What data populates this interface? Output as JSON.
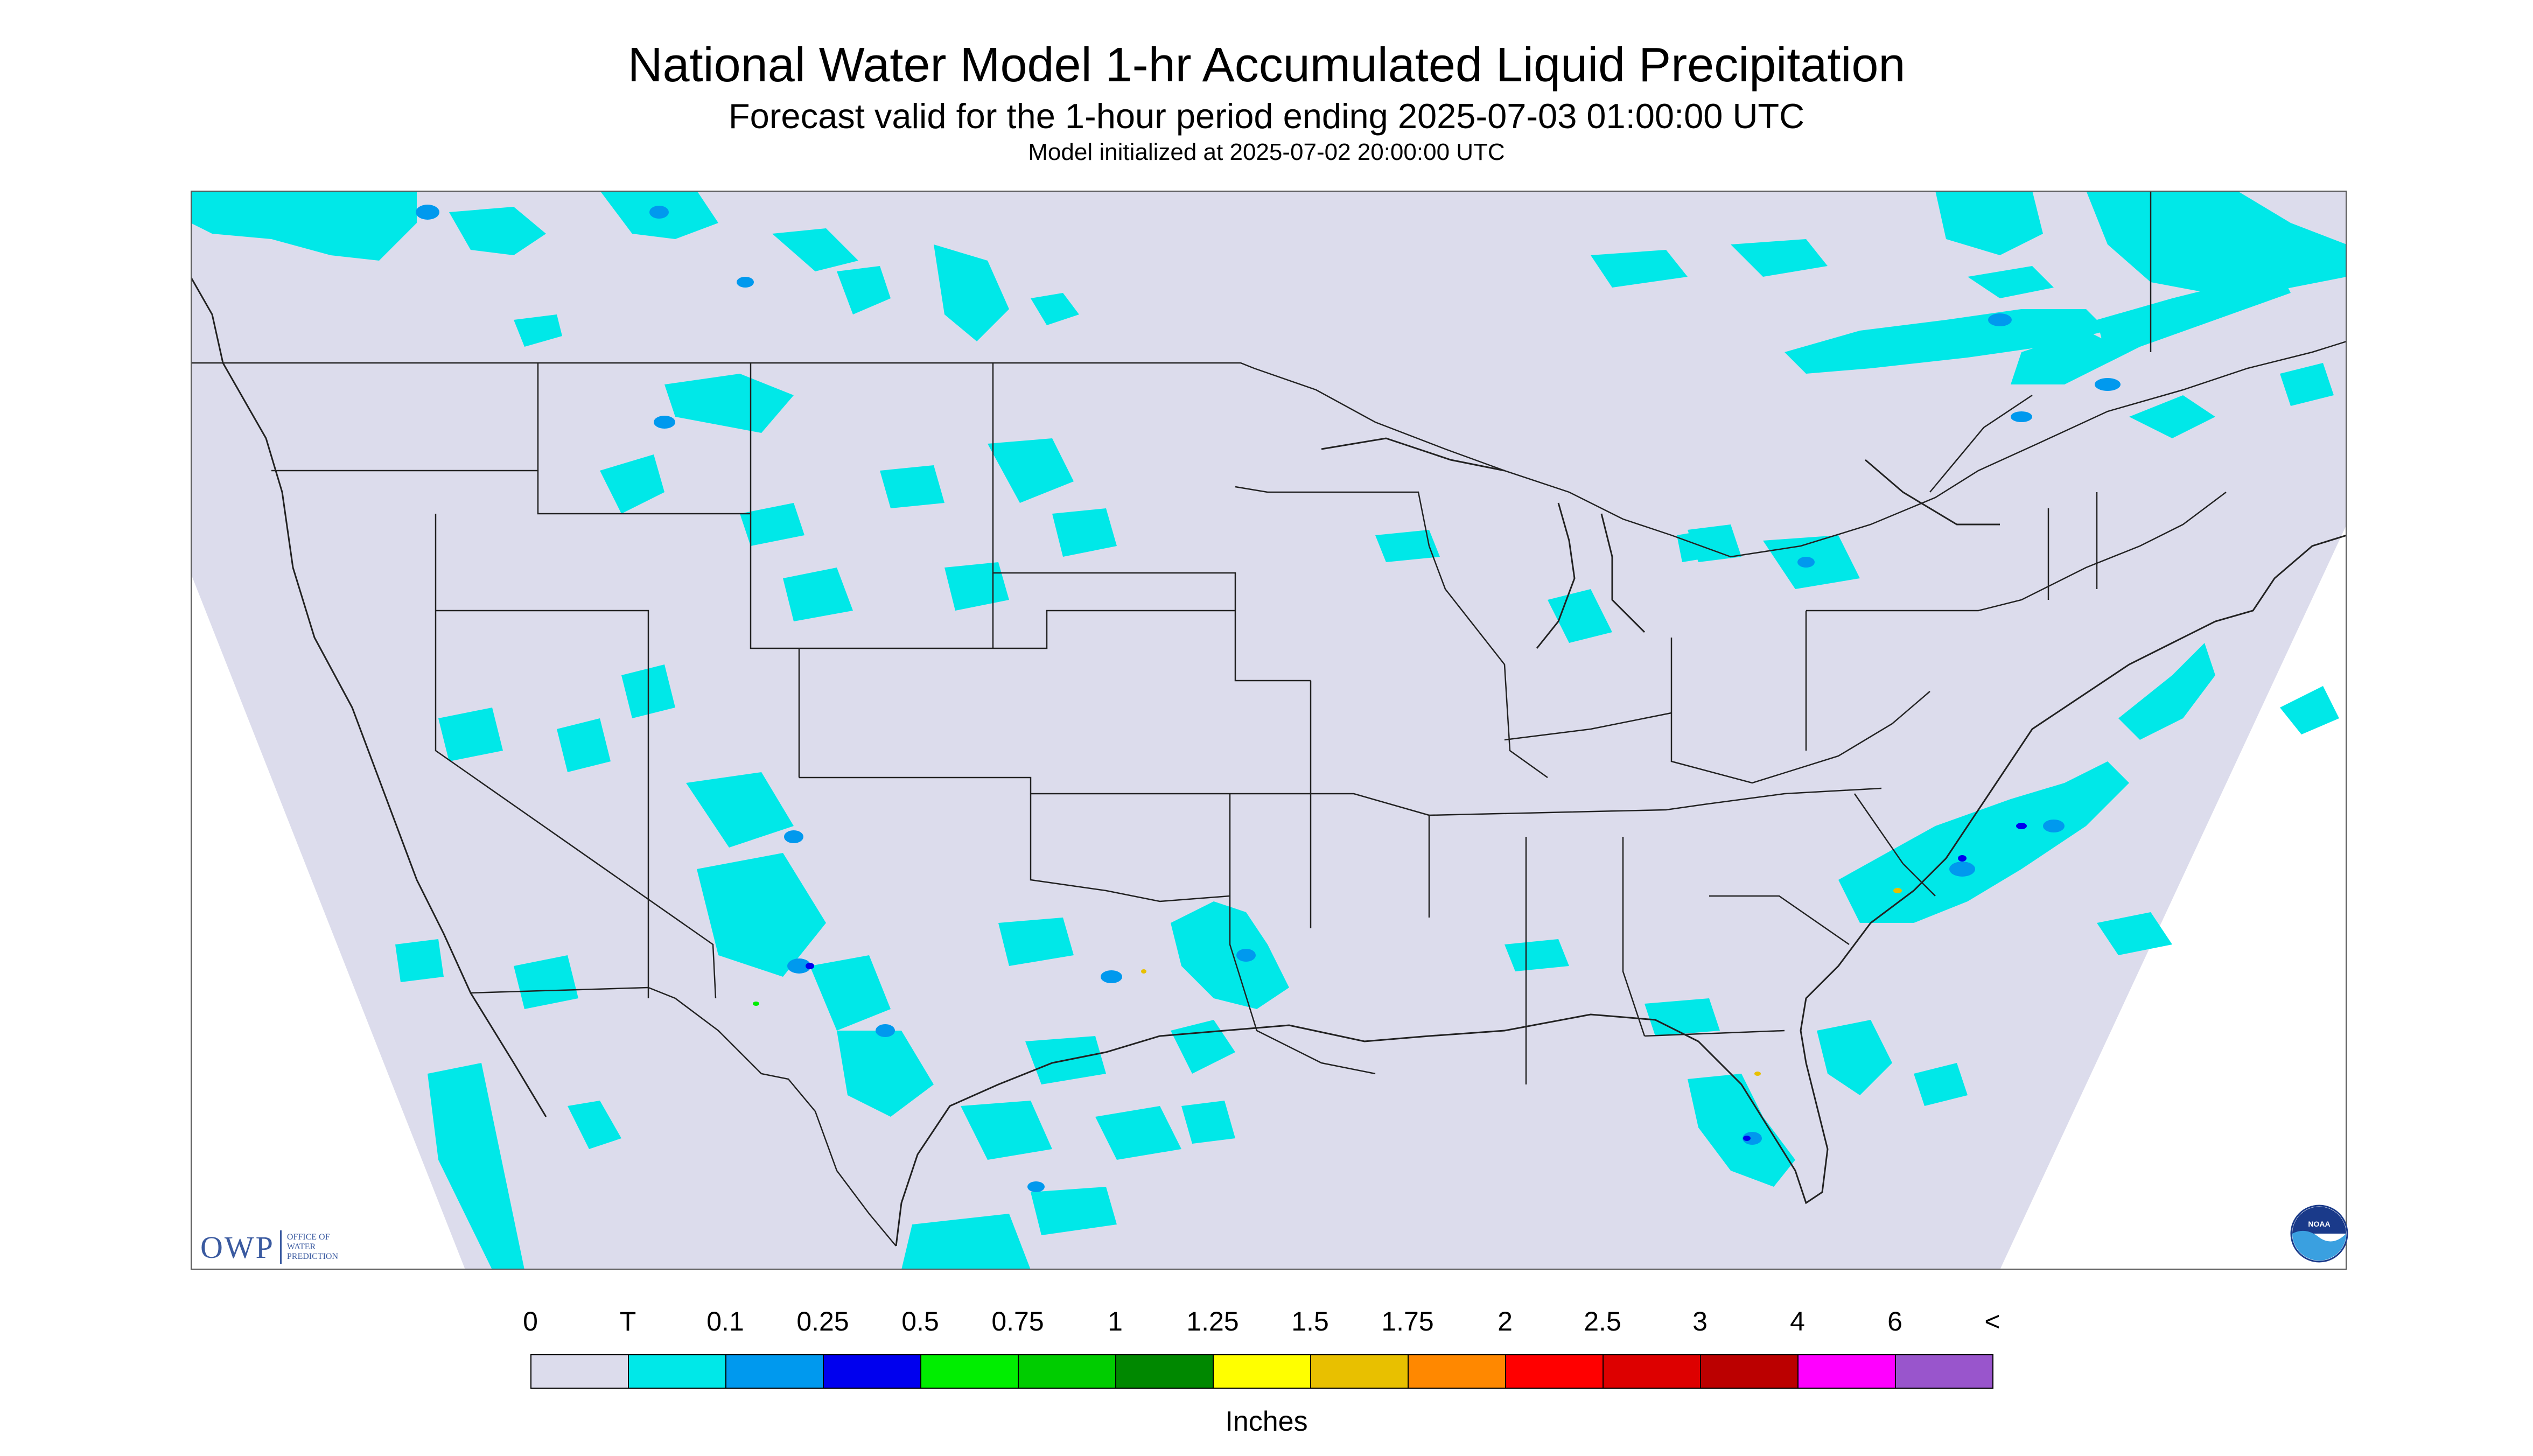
{
  "header": {
    "title": "National Water Model 1-hr Accumulated Liquid Precipitation",
    "subtitle": "Forecast valid for the 1-hour period ending 2025-07-03 01:00:00 UTC",
    "init": "Model initialized at 2025-07-02 20:00:00 UTC"
  },
  "map": {
    "background": "#dcdcec",
    "outside_domain": "#ffffff",
    "boundary_color": "#222222",
    "precip_classes": [
      {
        "range": "T-0.1",
        "color": "#00e8e8"
      },
      {
        "range": "0.1-0.25",
        "color": "#0099ee"
      },
      {
        "range": "0.25-0.5",
        "color": "#0000ee"
      },
      {
        "range": "0.5-0.75",
        "color": "#00ee00"
      },
      {
        "range": "1.5-1.75",
        "color": "#e8c000"
      }
    ]
  },
  "logos": {
    "owp": {
      "mark": "OWP",
      "text": "OFFICE OF\nWATER\nPREDICTION"
    },
    "noaa": {
      "text": "NOAA"
    }
  },
  "legend": {
    "ticks": [
      "0",
      "T",
      "0.1",
      "0.25",
      "0.5",
      "0.75",
      "1",
      "1.25",
      "1.5",
      "1.75",
      "2",
      "2.5",
      "3",
      "4",
      "6",
      "<"
    ],
    "colors": [
      "#dcdcec",
      "#00e8e8",
      "#0099ee",
      "#0000ee",
      "#00ee00",
      "#00cc00",
      "#008800",
      "#ffff00",
      "#e8c000",
      "#ff8800",
      "#ff0000",
      "#dd0000",
      "#bb0000",
      "#ff00ff",
      "#9955cc"
    ],
    "units": "Inches"
  }
}
